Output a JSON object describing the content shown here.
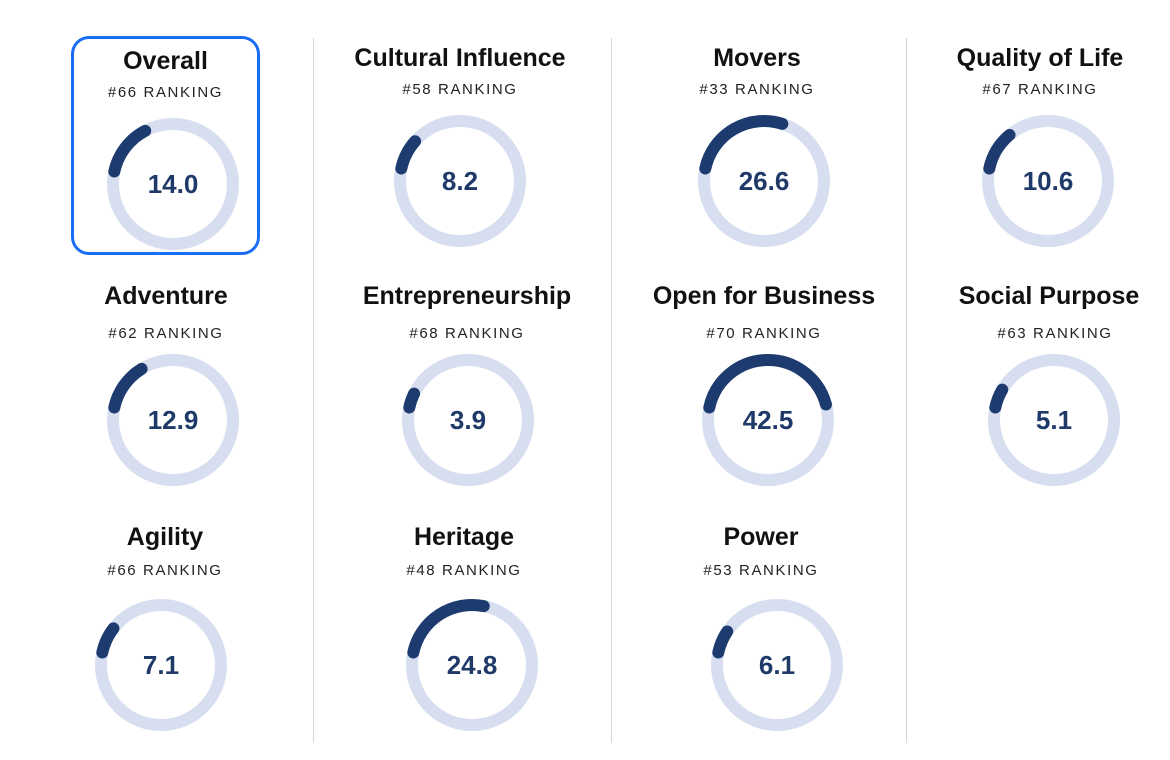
{
  "colors": {
    "track": "#d7def0",
    "arc": "#1d3b6e",
    "value_text": "#1f3a68",
    "selected_border": "#1a6ef5"
  },
  "gauge_max": 100,
  "cards": [
    {
      "name": "Overall",
      "rank": "#66 RANKING",
      "value": "14.0",
      "selected": true
    },
    {
      "name": "Cultural Influence",
      "rank": "#58 RANKING",
      "value": "8.2"
    },
    {
      "name": "Movers",
      "rank": "#33 RANKING",
      "value": "26.6"
    },
    {
      "name": "Quality of Life",
      "rank": "#67 RANKING",
      "value": "10.6"
    },
    {
      "name": "Adventure",
      "rank": "#62 RANKING",
      "value": "12.9"
    },
    {
      "name": "Entrepreneurship",
      "rank": "#68 RANKING",
      "value": "3.9"
    },
    {
      "name": "Open for Business",
      "rank": "#70 RANKING",
      "value": "42.5"
    },
    {
      "name": "Social Purpose",
      "rank": "#63 RANKING",
      "value": "5.1"
    },
    {
      "name": "Agility",
      "rank": "#66 RANKING",
      "value": "7.1"
    },
    {
      "name": "Heritage",
      "rank": "#48 RANKING",
      "value": "24.8"
    },
    {
      "name": "Power",
      "rank": "#53 RANKING",
      "value": "6.1"
    }
  ]
}
